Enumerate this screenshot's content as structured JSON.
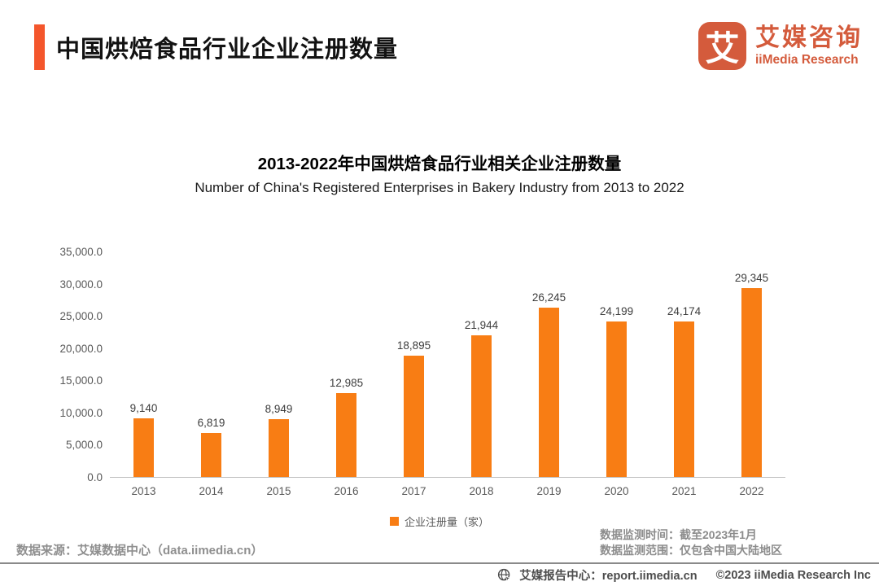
{
  "header": {
    "title": "中国烘焙食品行业企业注册数量",
    "logo": {
      "icon_char": "艾",
      "name_cn": "艾媒咨询",
      "name_en": "iiMedia Research"
    }
  },
  "chart_data": {
    "type": "bar",
    "title": "2013-2022年中国烘焙食品行业相关企业注册数量",
    "subtitle": "Number of China's Registered Enterprises in Bakery Industry from 2013 to 2022",
    "categories": [
      "2013",
      "2014",
      "2015",
      "2016",
      "2017",
      "2018",
      "2019",
      "2020",
      "2021",
      "2022"
    ],
    "values": [
      9140,
      6819,
      8949,
      12985,
      18895,
      21944,
      26245,
      24199,
      24174,
      29345
    ],
    "value_labels": [
      "9,140",
      "6,819",
      "8,949",
      "12,985",
      "18,895",
      "21,944",
      "26,245",
      "24,199",
      "24,174",
      "29,345"
    ],
    "ylim": [
      0,
      35000
    ],
    "y_ticks": [
      {
        "value": 0,
        "label": "0.0"
      },
      {
        "value": 5000,
        "label": "5,000.0"
      },
      {
        "value": 10000,
        "label": "10,000.0"
      },
      {
        "value": 15000,
        "label": "15,000.0"
      },
      {
        "value": 20000,
        "label": "20,000.0"
      },
      {
        "value": 25000,
        "label": "25,000.0"
      },
      {
        "value": 30000,
        "label": "30,000.0"
      },
      {
        "value": 35000,
        "label": "35,000.0"
      }
    ],
    "grid": false,
    "legend_position": "bottom",
    "legend": "企业注册量（家）",
    "bar_color": "#F87D14",
    "xlabel": "",
    "ylabel": ""
  },
  "notes": {
    "source": "数据来源：艾媒数据中心（data.iimedia.cn）",
    "monitor_time": "数据监测时间：截至2023年1月",
    "monitor_scope": "数据监测范围：仅包含中国大陆地区"
  },
  "footer": {
    "report_center": "艾媒报告中心：report.iimedia.cn",
    "copyright": "©2023 iiMedia Research  Inc"
  },
  "colors": {
    "accent": "#F4562C",
    "bar": "#F87D14",
    "logo": "#D45B3C"
  }
}
